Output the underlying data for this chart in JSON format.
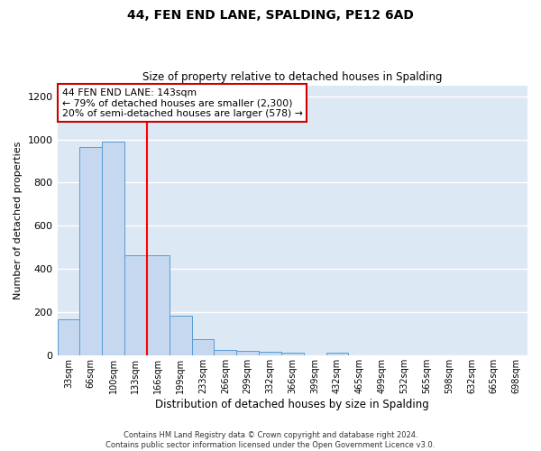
{
  "title1": "44, FEN END LANE, SPALDING, PE12 6AD",
  "title2": "Size of property relative to detached houses in Spalding",
  "xlabel": "Distribution of detached houses by size in Spalding",
  "ylabel": "Number of detached properties",
  "categories": [
    "33sqm",
    "66sqm",
    "100sqm",
    "133sqm",
    "166sqm",
    "199sqm",
    "233sqm",
    "266sqm",
    "299sqm",
    "332sqm",
    "366sqm",
    "399sqm",
    "432sqm",
    "465sqm",
    "499sqm",
    "532sqm",
    "565sqm",
    "598sqm",
    "632sqm",
    "665sqm",
    "698sqm"
  ],
  "values": [
    170,
    965,
    990,
    465,
    465,
    183,
    75,
    27,
    20,
    18,
    12,
    0,
    13,
    0,
    0,
    0,
    0,
    0,
    0,
    0,
    0
  ],
  "bar_color": "#c5d8ef",
  "bar_edge_color": "#5b9bd5",
  "red_line_x": 3.5,
  "annotation_text": "44 FEN END LANE: 143sqm\n← 79% of detached houses are smaller (2,300)\n20% of semi-detached houses are larger (578) →",
  "annotation_box_color": "white",
  "annotation_box_edge": "#cc0000",
  "footnote": "Contains HM Land Registry data © Crown copyright and database right 2024.\nContains public sector information licensed under the Open Government Licence v3.0.",
  "ylim": [
    0,
    1250
  ],
  "yticks": [
    0,
    200,
    400,
    600,
    800,
    1000,
    1200
  ],
  "background_color": "#dde8f5",
  "grid_color": "white"
}
